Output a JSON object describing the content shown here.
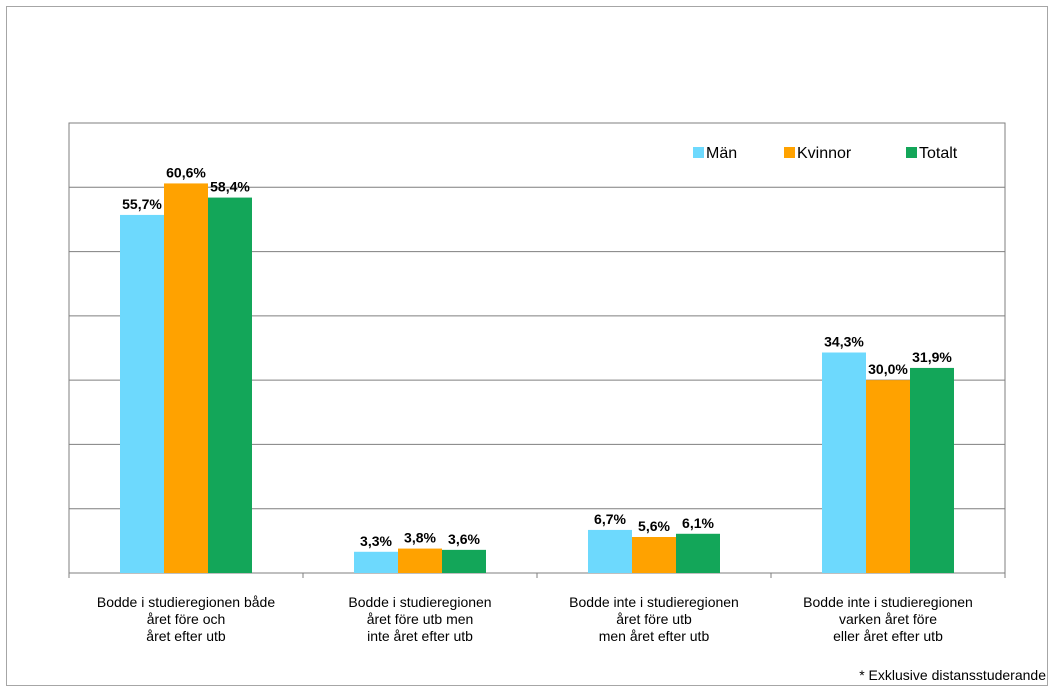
{
  "chart_data": {
    "type": "bar",
    "categories": [
      [
        "Bodde i studieregionen både",
        "året före och",
        "året efter utb"
      ],
      [
        "Bodde i studieregionen",
        "året före utb men",
        "inte året efter utb"
      ],
      [
        "Bodde inte i studieregionen",
        "året före utb",
        "men året efter utb"
      ],
      [
        "Bodde inte i studieregionen",
        "varken året före",
        "eller året efter utb"
      ]
    ],
    "series": [
      {
        "name": "Män",
        "color": "#6dd9fd",
        "values": [
          55.7,
          3.3,
          6.7,
          34.3
        ],
        "labels": [
          "55,7%",
          "3,3%",
          "6,7%",
          "34,3%"
        ]
      },
      {
        "name": "Kvinnor",
        "color": "#ffa200",
        "values": [
          60.6,
          3.8,
          5.6,
          30.0
        ],
        "labels": [
          "60,6%",
          "3,8%",
          "5,6%",
          "30,0%"
        ]
      },
      {
        "name": "Totalt",
        "color": "#13a659",
        "values": [
          58.4,
          3.6,
          6.1,
          31.9
        ],
        "labels": [
          "58,4%",
          "3,6%",
          "6,1%",
          "31,9%"
        ]
      }
    ],
    "ylim": [
      0,
      70
    ],
    "grid": true,
    "legend": "top-right"
  },
  "footnote": "* Exklusive distansstuderande"
}
